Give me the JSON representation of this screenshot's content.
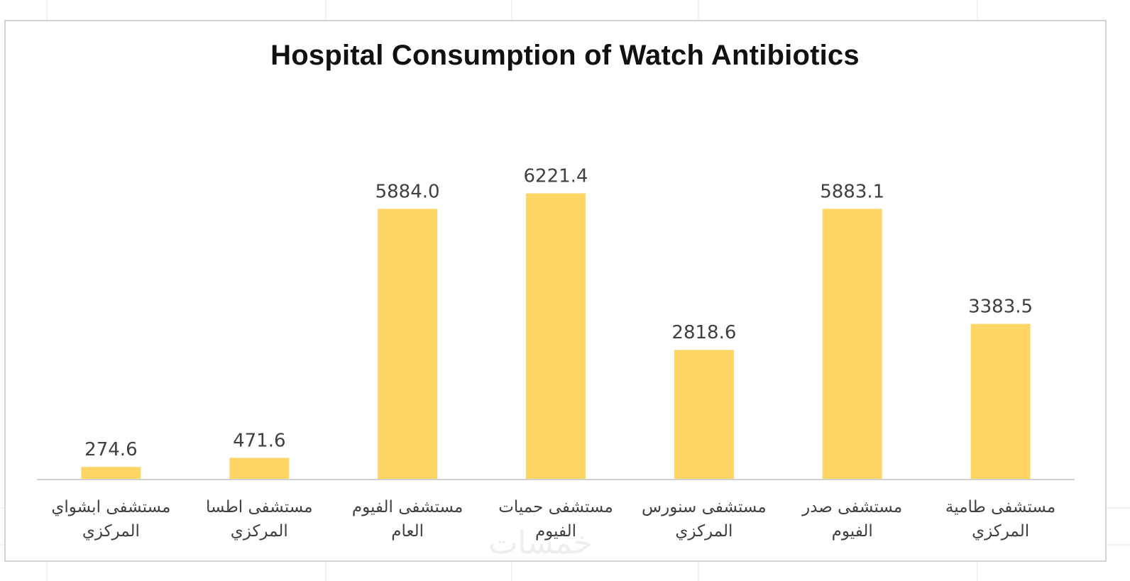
{
  "chart_data": {
    "type": "bar",
    "title": "Hospital Consumption of Watch Antibiotics",
    "xlabel": "",
    "ylabel": "",
    "ylim": [
      0,
      7000
    ],
    "grid": false,
    "legend": "none",
    "categories": [
      "مستشفى ابشواي المركزي",
      "مستشفى اطسا المركزي",
      "مستشفى الفيوم العام",
      "مستشفى حميات الفيوم",
      "مستشفى سنورس المركزي",
      "مستشفى صدر الفيوم",
      "مستشفى طامية المركزي"
    ],
    "category_lines": [
      [
        "مستشفى ابشواي",
        "المركزي"
      ],
      [
        "مستشفى اطسا",
        "المركزي"
      ],
      [
        "مستشفى الفيوم",
        "العام"
      ],
      [
        "مستشفى حميات",
        "الفيوم"
      ],
      [
        "مستشفى سنورس",
        "المركزي"
      ],
      [
        "مستشفى صدر",
        "الفيوم"
      ],
      [
        "مستشفى طامية",
        "المركزي"
      ]
    ],
    "values": [
      274.6,
      471.6,
      5884.0,
      6221.4,
      2818.6,
      5883.1,
      3383.5
    ],
    "value_labels": [
      "274.6",
      "471.6",
      "5884.0",
      "6221.4",
      "2818.6",
      "5883.1",
      "3383.5"
    ],
    "bar_color": "#FDD666",
    "axis_color": "#d0d0d0",
    "label_color": "#404040"
  },
  "watermark": "خمسات"
}
